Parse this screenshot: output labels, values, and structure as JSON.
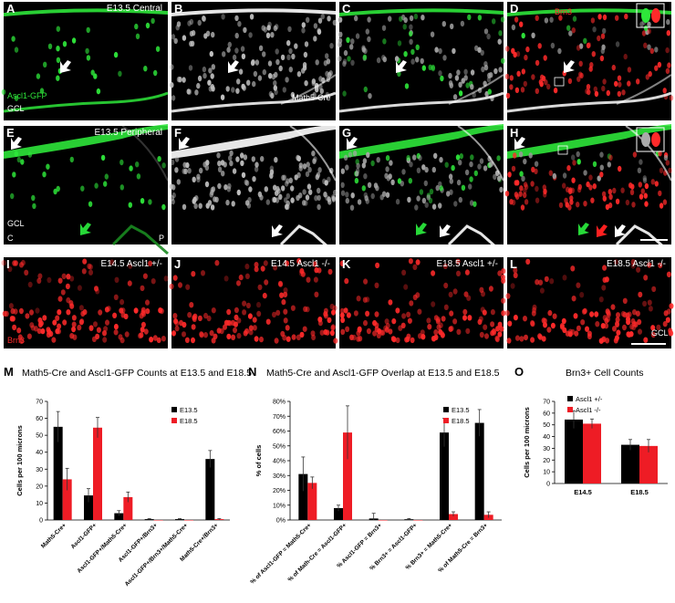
{
  "colors": {
    "green": "#2ee63a",
    "red": "#ff2a2a",
    "gray": "#d9d9d9",
    "black": "#000000",
    "bar_red": "#ee1c25",
    "arrow_green": "#27d838",
    "arrow_red": "#ff2020"
  },
  "panels": [
    {
      "letter": "A",
      "title": "E13.5 Central",
      "labels": [
        "Ascl1-GFP",
        "GCL"
      ],
      "kind": "green"
    },
    {
      "letter": "B",
      "title": "",
      "labels": [
        "Math5-Cre"
      ],
      "kind": "gray"
    },
    {
      "letter": "C",
      "title": "",
      "labels": [],
      "kind": "merge"
    },
    {
      "letter": "D",
      "title": "",
      "labels": [
        "Brn3"
      ],
      "kind": "mergered"
    },
    {
      "letter": "E",
      "title": "E13.5 Peripheral",
      "labels": [
        "GCL",
        "C",
        "P"
      ],
      "kind": "green"
    },
    {
      "letter": "F",
      "title": "",
      "labels": [],
      "kind": "gray"
    },
    {
      "letter": "G",
      "title": "",
      "labels": [],
      "kind": "merge"
    },
    {
      "letter": "H",
      "title": "",
      "labels": [],
      "kind": "mergered"
    },
    {
      "letter": "I",
      "title": "E14.5 Ascl1 +/-",
      "labels": [
        "Brn3"
      ],
      "kind": "red"
    },
    {
      "letter": "J",
      "title": "E14.5 Ascl1 -/-",
      "labels": [],
      "kind": "red"
    },
    {
      "letter": "K",
      "title": "E18.5 Ascl1 +/-",
      "labels": [],
      "kind": "red"
    },
    {
      "letter": "L",
      "title": "E18.5 Ascl1 -/-",
      "labels": [
        "GCL"
      ],
      "kind": "red"
    }
  ],
  "chart_data": [
    {
      "letter": "M",
      "type": "bar",
      "title": "Math5-Cre and Ascl1-GFP Counts at E13.5 and E18.5",
      "ylabel": "Cells per 100 microns",
      "ylim": [
        0,
        70
      ],
      "yticks": [
        "0",
        "10",
        "20",
        "30",
        "40",
        "50",
        "60",
        "70"
      ],
      "categories": [
        "Math5-Cre+",
        "Ascl1-GFP+",
        "Ascl1-GFP+/Math5-Cre+",
        "Ascl1-GFP+/Brn3+",
        "Ascl1-GFP+/Brn3+/Math5-Cre+",
        "Math5-Cre+/Brn3+"
      ],
      "legend": "top-right",
      "series": [
        {
          "name": "E13.5",
          "color": "#000000",
          "values": [
            55,
            14.5,
            4,
            0.5,
            0.5,
            36
          ],
          "errors": [
            9,
            4,
            1.5,
            0.3,
            0.3,
            5
          ]
        },
        {
          "name": "E18.5",
          "color": "#ee1c25",
          "values": [
            24,
            54.5,
            13.5,
            0,
            0,
            0.5
          ],
          "errors": [
            6.5,
            6,
            3,
            0,
            0,
            0.3
          ]
        }
      ]
    },
    {
      "letter": "N",
      "type": "bar",
      "title": "Math5-Cre and Ascl1-GFP Overlap at E13.5 and E18.5",
      "ylabel": "% of cells",
      "ylim": [
        0,
        80
      ],
      "yticks": [
        "0%",
        "10%",
        "20%",
        "30%",
        "40%",
        "50%",
        "60%",
        "70%",
        "80%"
      ],
      "categories": [
        "% of Ascl1-GFP = Math5-Cre+",
        "% of Math-Cre = Ascl1-GFP+",
        "% Ascl1-GFP = Brn3+",
        "% Brn3+ = Ascl1-GFP+",
        "% Brn3+ = Math5-Cre+",
        "% of Math5-Cre = Brn3+"
      ],
      "legend": "top-right",
      "series": [
        {
          "name": "E13.5",
          "color": "#000000",
          "values": [
            31,
            8,
            1,
            0.5,
            59,
            65.5
          ],
          "errors": [
            11.5,
            2,
            3.5,
            0.5,
            9.5,
            9
          ]
        },
        {
          "name": "E18.5",
          "color": "#ee1c25",
          "values": [
            25,
            59,
            0,
            0,
            4,
            3.5
          ],
          "errors": [
            4,
            18,
            0,
            0,
            1.5,
            2
          ]
        }
      ]
    },
    {
      "letter": "O",
      "type": "bar",
      "title": "Brn3+ Cell Counts",
      "ylabel": "Cells per 100 microns",
      "ylim": [
        0,
        70
      ],
      "yticks": [
        "0",
        "10",
        "20",
        "30",
        "40",
        "50",
        "60",
        "70"
      ],
      "categories": [
        "E14.5",
        "E18.5"
      ],
      "legend": "top-right",
      "series": [
        {
          "name": "Ascl1 +/-",
          "color": "#000000",
          "values": [
            54.5,
            33
          ],
          "errors": [
            7.5,
            4.5
          ]
        },
        {
          "name": "Ascl1 -/-",
          "color": "#ee1c25",
          "values": [
            51,
            32
          ],
          "errors": [
            4,
            5.5
          ]
        }
      ]
    }
  ]
}
